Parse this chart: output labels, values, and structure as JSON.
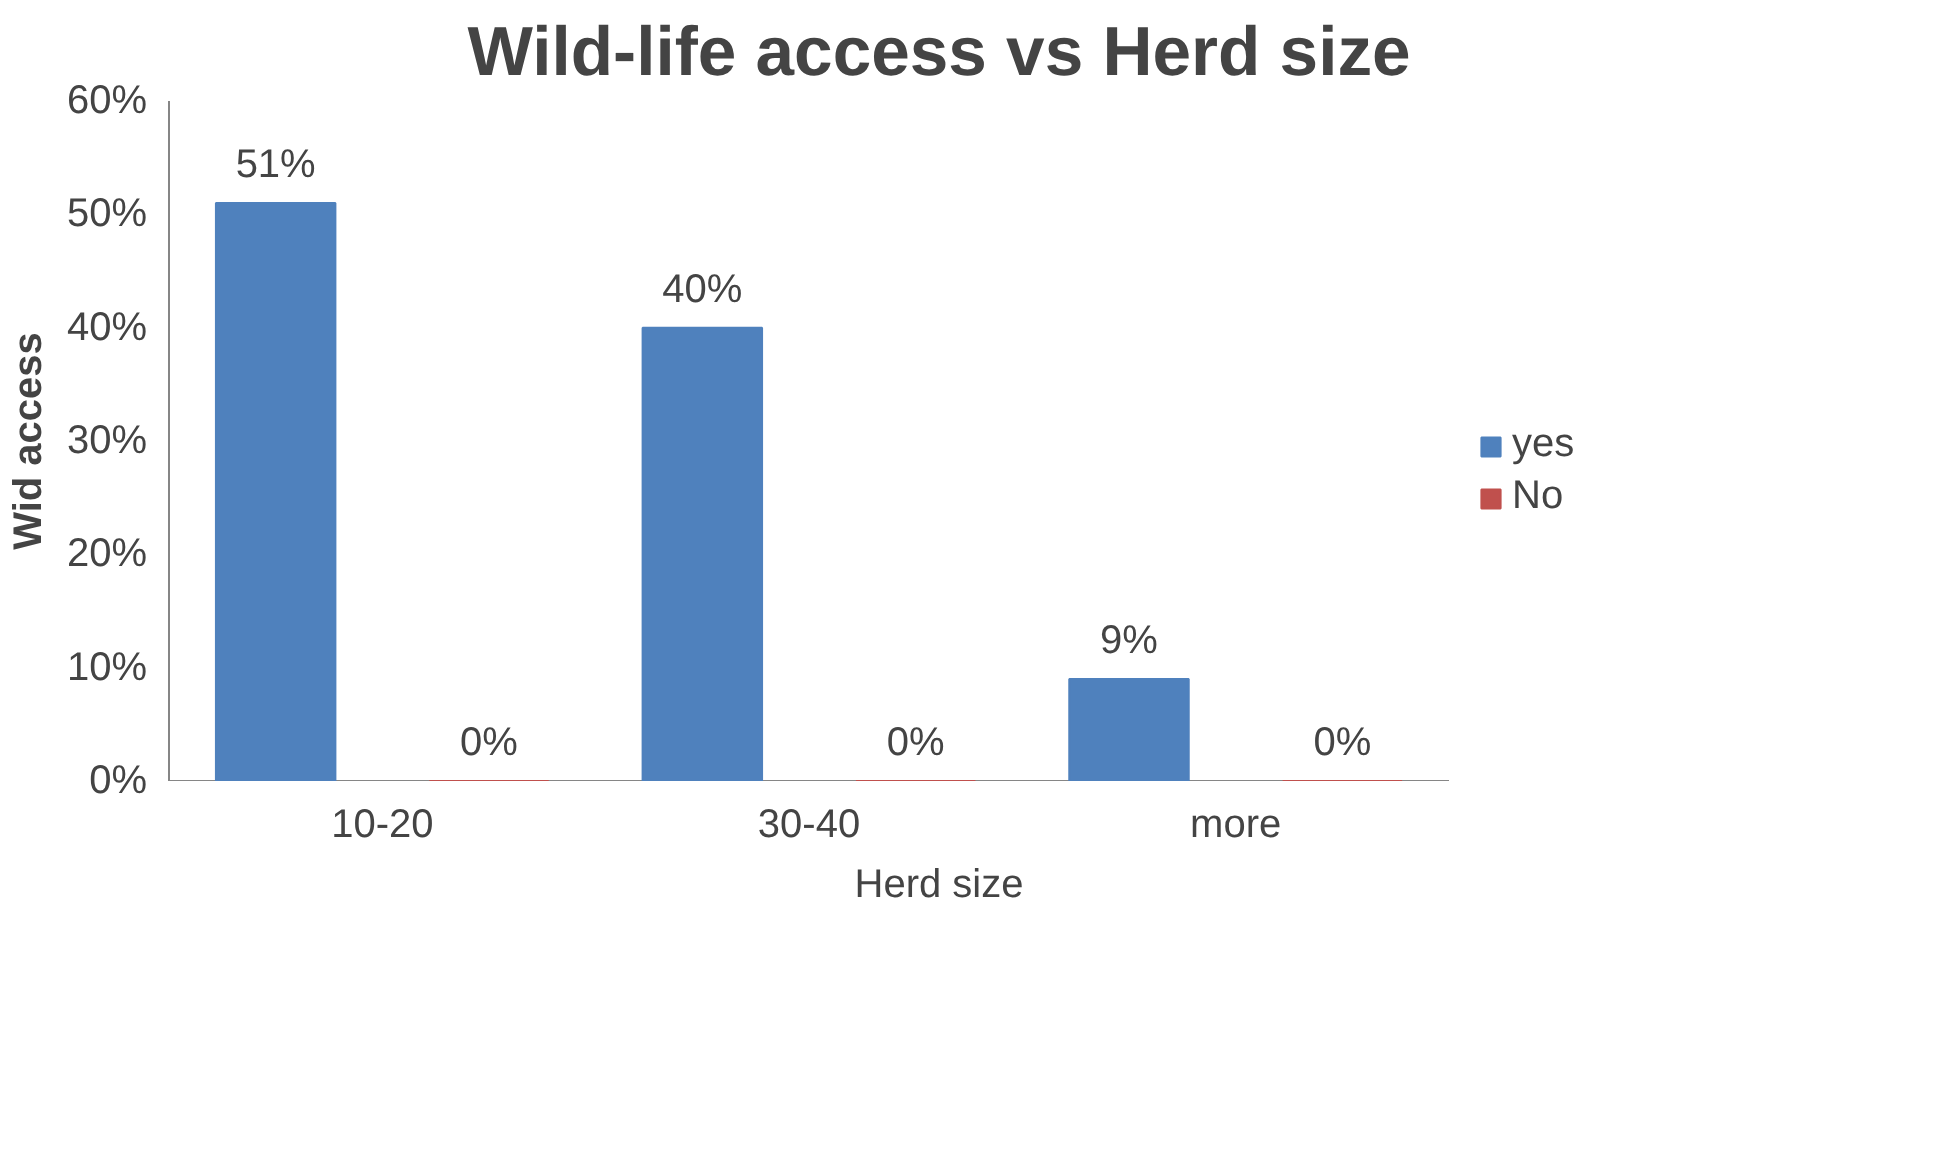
{
  "chart_data": {
    "type": "bar",
    "title": "Wild-life access vs Herd size",
    "xlabel": "Herd size",
    "ylabel": "Wid access",
    "categories": [
      "10-20",
      "30-40",
      "more"
    ],
    "series": [
      {
        "name": "yes",
        "color": "#4f81bd",
        "values": [
          51,
          40,
          9
        ],
        "value_labels": [
          "51%",
          "40%",
          "9%"
        ]
      },
      {
        "name": "No",
        "color": "#c0504d",
        "values": [
          0,
          0,
          0
        ],
        "value_labels": [
          "0%",
          "0%",
          "0%"
        ]
      }
    ],
    "ylim": [
      0,
      60
    ],
    "yticks": [
      {
        "value": 0,
        "label": "0%"
      },
      {
        "value": 10,
        "label": "10%"
      },
      {
        "value": 20,
        "label": "20%"
      },
      {
        "value": 30,
        "label": "30%"
      },
      {
        "value": 40,
        "label": "40%"
      },
      {
        "value": 50,
        "label": "50%"
      },
      {
        "value": 60,
        "label": "60%"
      }
    ],
    "grid": false,
    "legend": "right"
  }
}
